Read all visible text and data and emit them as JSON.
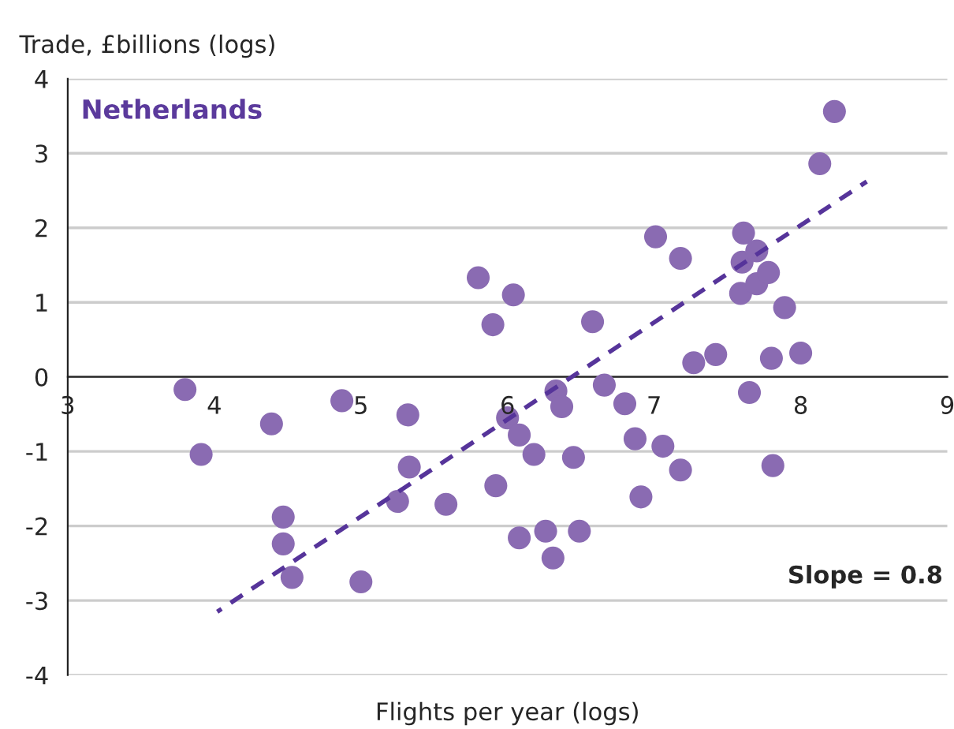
{
  "chart_data": {
    "type": "scatter",
    "title": "Netherlands",
    "xlabel": "Flights per year (logs)",
    "ylabel": "Trade, £billions (logs)",
    "annotations": [
      "Slope = 0.8"
    ],
    "xlim": [
      3,
      9
    ],
    "xticks": [
      3,
      4,
      5,
      6,
      7,
      8,
      9
    ],
    "ylim": [
      -4,
      4
    ],
    "yticks": [
      -4,
      -3,
      -2,
      -1,
      0,
      1,
      2,
      3,
      4
    ],
    "grid": "y",
    "legend": false,
    "marker": "circle",
    "series": [
      {
        "color": "#8a6bb2",
        "x": [
          3.8,
          3.91,
          4.39,
          4.47,
          4.47,
          4.53,
          4.87,
          5.0,
          5.32,
          5.33,
          5.25,
          5.58,
          5.8,
          5.9,
          6.04,
          5.92,
          6.0,
          6.08,
          6.18,
          6.08,
          6.26,
          6.31,
          6.33,
          6.37,
          6.45,
          6.49,
          6.58,
          6.66,
          6.8,
          6.87,
          6.91,
          7.06,
          7.18,
          7.01,
          7.18,
          7.27,
          7.42,
          7.61,
          7.6,
          7.7,
          7.59,
          7.7,
          7.78,
          7.89,
          7.8,
          7.65,
          8.0,
          7.81,
          8.13,
          8.23
        ],
        "values": [
          -0.17,
          -1.04,
          -0.63,
          -1.88,
          -2.24,
          -2.69,
          -0.32,
          -2.75,
          -0.51,
          -1.21,
          -1.67,
          -1.71,
          1.33,
          0.7,
          1.1,
          -1.46,
          -0.55,
          -0.78,
          -1.04,
          -2.16,
          -2.07,
          -2.43,
          -0.19,
          -0.4,
          -1.08,
          -2.07,
          0.74,
          -0.11,
          -0.36,
          -0.83,
          -1.61,
          -0.93,
          -1.25,
          1.88,
          1.59,
          0.19,
          0.3,
          1.93,
          1.54,
          1.69,
          1.12,
          1.25,
          1.4,
          0.93,
          0.25,
          -0.21,
          0.32,
          -1.19,
          2.86,
          3.56
        ]
      },
      {
        "type": "line",
        "color": "#56349a",
        "line_style": "dashed",
        "marker": "none",
        "x": [
          4.02,
          8.45
        ],
        "values": [
          -3.15,
          2.62
        ]
      }
    ]
  }
}
